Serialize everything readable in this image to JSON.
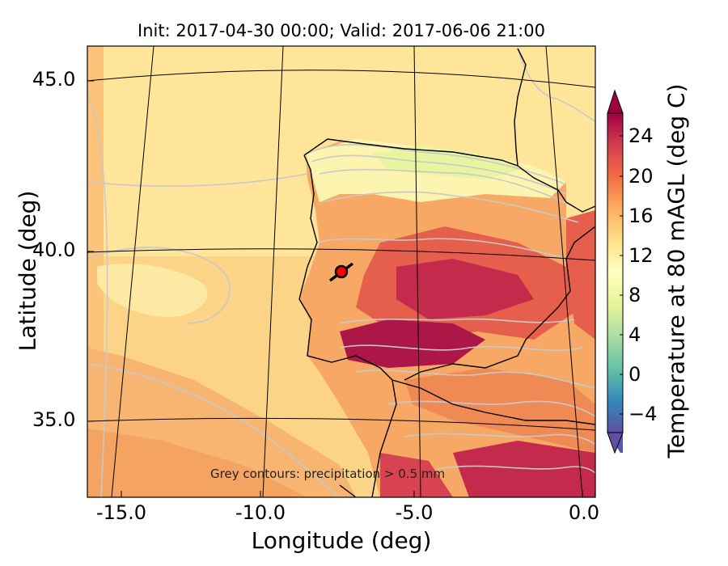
{
  "title": "Init: 2017-04-30 00:00; Valid: 2017-06-06 21:00",
  "x_axis": {
    "label": "Longitude (deg)",
    "ticks": [
      "-15.0",
      "-10.0",
      "-5.0",
      "0.0"
    ]
  },
  "y_axis": {
    "label": "Latitude (deg)",
    "ticks": [
      "45.0",
      "40.0",
      "35.0"
    ]
  },
  "colorbar": {
    "label": "Temperature at 80 mAGL (deg C)",
    "ticks": [
      "24",
      "20",
      "16",
      "12",
      "8",
      "4",
      "0",
      "−4"
    ],
    "range": [
      -6,
      28
    ],
    "colormap": "Spectral_r",
    "colors": [
      "#5e4fa2",
      "#3288bd",
      "#66c2a5",
      "#abdda4",
      "#e6f598",
      "#ffffbf",
      "#fee08b",
      "#fdae61",
      "#f46d43",
      "#d53e4f",
      "#9e0142"
    ]
  },
  "annotation": "Grey contours: precipitation > 0.5 mm",
  "marker": {
    "longitude": -7.6,
    "latitude": 39.3,
    "color": "#ff0000"
  },
  "colors": {
    "coastline": "#000000",
    "graticule": "#000000",
    "precip_contours": "#c8c8c8"
  }
}
